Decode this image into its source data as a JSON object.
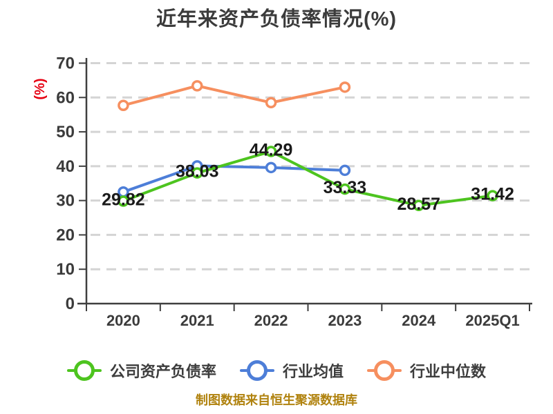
{
  "page": {
    "source_note": "制图数据来自恒生聚源数据库"
  },
  "colors": {
    "title": "#3b3b3b",
    "axis": "#3f3f3f",
    "tick_label": "#3b3b3b",
    "grid": "#d4d4d4",
    "data_label": "#1a1a1a",
    "ylabel": "#e60012",
    "legend_text": "#3d3d3d",
    "source_text": "#b0820e",
    "background": "#ffffff"
  },
  "chart_data": {
    "type": "line",
    "title": "近年来资产负债率情况(%)",
    "xlabel": "",
    "ylabel": "(%)",
    "ylim": [
      0,
      70
    ],
    "yticks": [
      0,
      10,
      20,
      30,
      40,
      50,
      60,
      70
    ],
    "grid": "horizontal-dashed",
    "legend_position": "bottom",
    "categories": [
      "2020",
      "2021",
      "2022",
      "2023",
      "2024",
      "2025Q1"
    ],
    "series": [
      {
        "name": "公司资产负债率",
        "color": "#4dc41f",
        "values": [
          29.82,
          38.03,
          44.29,
          33.33,
          28.57,
          31.42
        ],
        "data_labels": true
      },
      {
        "name": "行业均值",
        "color": "#4d7ed8",
        "values": [
          32.5,
          40.1,
          39.6,
          38.8,
          null,
          null
        ],
        "data_labels": false
      },
      {
        "name": "行业中位数",
        "color": "#f68f5f",
        "values": [
          57.7,
          63.4,
          58.5,
          63.0,
          null,
          null
        ],
        "data_labels": false
      }
    ]
  }
}
